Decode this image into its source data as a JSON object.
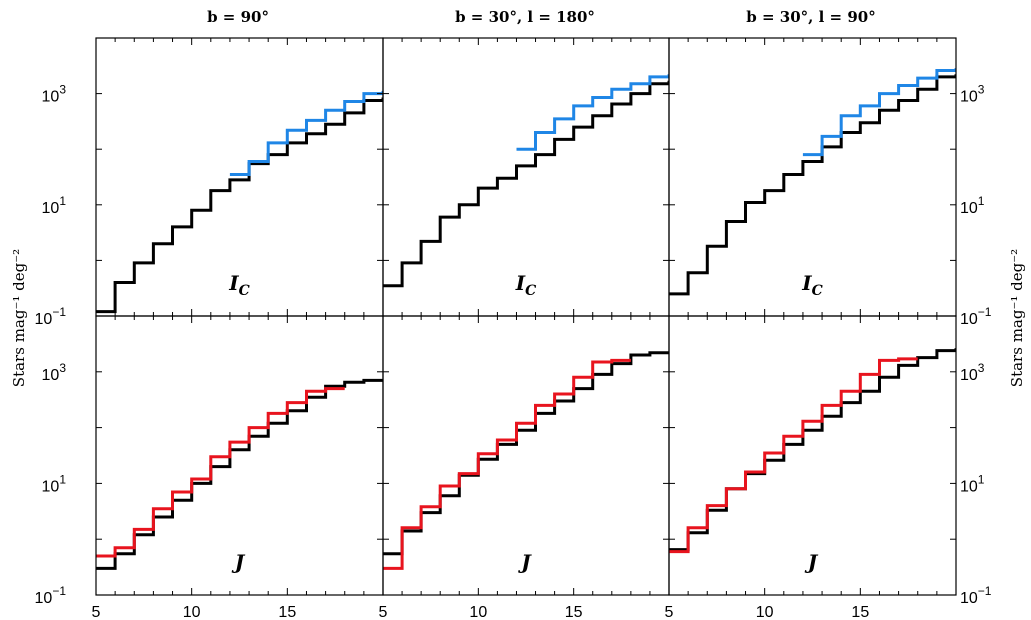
{
  "figure": {
    "ylabel": "Stars mag⁻¹ deg⁻²",
    "x_ticks": [
      "5",
      "10",
      "15"
    ],
    "y_ticks": [
      {
        "exp": -1,
        "base": "10",
        "sup": "−1"
      },
      {
        "exp": 1,
        "base": "10",
        "sup": "1"
      },
      {
        "exp": 3,
        "base": "10",
        "sup": "3"
      }
    ],
    "colors": {
      "model": "#000000",
      "ic_obs": "#1f86e6",
      "j_obs": "#e8141e"
    }
  },
  "chart_data": [
    {
      "type": "line",
      "id": "ic-b90",
      "title": "b = 90°",
      "band": "I",
      "band_sub": "C",
      "xlim": [
        5,
        20
      ],
      "ylim_log10": [
        -1,
        4
      ],
      "yscale": "log",
      "series": [
        {
          "role": "model",
          "x": [
            5,
            6,
            7,
            8,
            9,
            10,
            11,
            12,
            13,
            14,
            15,
            16,
            17,
            18,
            19,
            20
          ],
          "y": [
            0.12,
            0.4,
            0.9,
            2,
            4,
            8,
            18,
            28,
            55,
            80,
            130,
            190,
            280,
            450,
            750,
            800
          ]
        },
        {
          "role": "obs",
          "x": [
            12,
            13,
            14,
            15,
            16,
            17,
            18,
            19,
            20
          ],
          "y": [
            35,
            60,
            130,
            220,
            330,
            500,
            720,
            1000,
            1050
          ]
        }
      ]
    },
    {
      "type": "line",
      "id": "ic-b30-l180",
      "title": "b = 30°, l = 180°",
      "band": "I",
      "band_sub": "C",
      "xlim": [
        5,
        20
      ],
      "ylim_log10": [
        -1,
        4
      ],
      "yscale": "log",
      "series": [
        {
          "role": "model",
          "x": [
            5,
            6,
            7,
            8,
            9,
            10,
            11,
            12,
            13,
            14,
            15,
            16,
            17,
            18,
            19,
            20
          ],
          "y": [
            0.35,
            0.9,
            2.2,
            6,
            10,
            20,
            30,
            50,
            80,
            150,
            250,
            400,
            650,
            1000,
            1500,
            1600
          ]
        },
        {
          "role": "obs",
          "x": [
            12,
            13,
            14,
            15,
            16,
            17,
            18,
            19,
            20
          ],
          "y": [
            100,
            200,
            350,
            600,
            850,
            1200,
            1500,
            2000,
            2100
          ]
        }
      ]
    },
    {
      "type": "line",
      "id": "ic-b30-l90",
      "title": "b = 30°, l = 90°",
      "band": "I",
      "band_sub": "C",
      "xlim": [
        5,
        20
      ],
      "ylim_log10": [
        -1,
        4
      ],
      "yscale": "log",
      "series": [
        {
          "role": "model",
          "x": [
            5,
            6,
            7,
            8,
            9,
            10,
            11,
            12,
            13,
            14,
            15,
            16,
            17,
            18,
            19,
            20
          ],
          "y": [
            0.25,
            0.6,
            1.8,
            5,
            11,
            18,
            35,
            60,
            110,
            200,
            300,
            500,
            750,
            1200,
            2000,
            2100
          ]
        },
        {
          "role": "obs",
          "x": [
            12,
            13,
            14,
            15,
            16,
            17,
            18,
            19,
            20
          ],
          "y": [
            80,
            170,
            400,
            600,
            1000,
            1400,
            1900,
            2600,
            2700
          ]
        }
      ]
    },
    {
      "type": "line",
      "id": "j-b90",
      "title": "",
      "band": "J",
      "band_sub": "",
      "xlim": [
        5,
        20
      ],
      "ylim_log10": [
        -1,
        4
      ],
      "yscale": "log",
      "series": [
        {
          "role": "model",
          "x": [
            5,
            6,
            7,
            8,
            9,
            10,
            11,
            12,
            13,
            14,
            15,
            16,
            17,
            18,
            19,
            20
          ],
          "y": [
            0.3,
            0.55,
            1.2,
            2.5,
            5,
            10,
            20,
            40,
            70,
            120,
            200,
            350,
            550,
            650,
            700,
            700
          ]
        },
        {
          "role": "obs",
          "x": [
            5,
            6,
            7,
            8,
            9,
            10,
            11,
            12,
            13,
            14,
            15,
            16,
            17
          ],
          "y": [
            0.5,
            0.7,
            1.5,
            3.5,
            7,
            12,
            30,
            55,
            100,
            180,
            280,
            450,
            500
          ]
        }
      ]
    },
    {
      "type": "line",
      "id": "j-b30-l180",
      "title": "",
      "band": "J",
      "band_sub": "",
      "xlim": [
        5,
        20
      ],
      "ylim_log10": [
        -1,
        4
      ],
      "yscale": "log",
      "series": [
        {
          "role": "model",
          "x": [
            5,
            6,
            7,
            8,
            9,
            10,
            11,
            12,
            13,
            14,
            15,
            16,
            17,
            18,
            19,
            20
          ],
          "y": [
            0.55,
            1.4,
            3,
            6,
            14,
            27,
            50,
            90,
            180,
            300,
            500,
            900,
            1400,
            2000,
            2200,
            2200
          ]
        },
        {
          "role": "obs",
          "x": [
            5,
            6,
            7,
            8,
            9,
            10,
            11,
            12,
            13,
            14,
            15,
            16,
            17
          ],
          "y": [
            0.3,
            1.6,
            3.8,
            9,
            15,
            34,
            60,
            120,
            250,
            400,
            800,
            1500,
            1600
          ]
        }
      ]
    },
    {
      "type": "line",
      "id": "j-b30-l90",
      "title": "",
      "band": "J",
      "band_sub": "",
      "xlim": [
        5,
        20
      ],
      "ylim_log10": [
        -1,
        4
      ],
      "yscale": "log",
      "series": [
        {
          "role": "model",
          "x": [
            5,
            6,
            7,
            8,
            9,
            10,
            11,
            12,
            13,
            14,
            15,
            16,
            17,
            18,
            19,
            20
          ],
          "y": [
            0.65,
            1.3,
            3.3,
            8,
            15,
            26,
            50,
            90,
            160,
            280,
            450,
            800,
            1300,
            1800,
            2400,
            2500
          ]
        },
        {
          "role": "obs",
          "x": [
            5,
            6,
            7,
            8,
            9,
            10,
            11,
            12,
            13,
            14,
            15,
            16,
            17
          ],
          "y": [
            0.6,
            1.6,
            4,
            8,
            16,
            35,
            70,
            130,
            250,
            450,
            900,
            1600,
            1700
          ]
        }
      ]
    }
  ]
}
